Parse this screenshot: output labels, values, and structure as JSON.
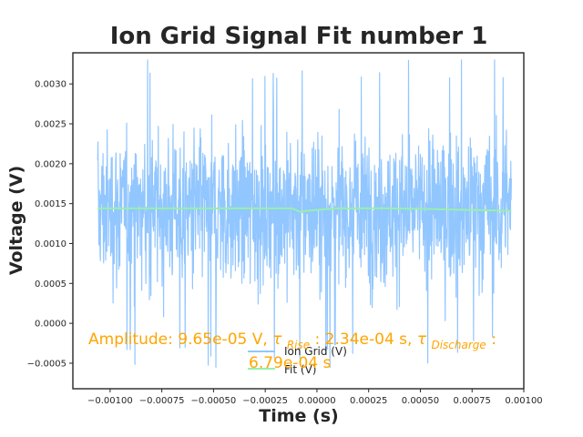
{
  "chart_data": {
    "type": "line",
    "title": "Ion Grid Signal Fit number 1",
    "xlabel": "Time (s)",
    "ylabel": "Voltage (V)",
    "xlim": [
      -0.00118,
      0.001
    ],
    "ylim": [
      -0.00082,
      0.00339
    ],
    "xticks": [
      -0.001,
      -0.00075,
      -0.0005,
      -0.00025,
      0.0,
      0.00025,
      0.0005,
      0.00075,
      0.001
    ],
    "xtick_labels": [
      "−0.00100",
      "−0.00075",
      "−0.00050",
      "−0.00025",
      "0.00000",
      "0.00025",
      "0.00050",
      "0.00075",
      "0.00100"
    ],
    "yticks": [
      -0.0005,
      0.0,
      0.0005,
      0.001,
      0.0015,
      0.002,
      0.0025,
      0.003
    ],
    "ytick_labels": [
      "−0.0005",
      "0.0000",
      "0.0005",
      "0.0010",
      "0.0015",
      "0.0020",
      "0.0025",
      "0.0030"
    ],
    "grid": false,
    "legend_position": "lower-center",
    "series": [
      {
        "name": "Ion Grid (V)",
        "color": "#92c6ff",
        "x_range": [
          -0.00106,
          0.00094
        ],
        "mean": 0.00143,
        "typical_range": [
          -5e-05,
          0.0029
        ],
        "extremes": [
          -0.00063,
          0.0033
        ]
      },
      {
        "name": "Fit (V)",
        "color": "#97f0aa",
        "x": [
          -0.00106,
          -0.00012,
          -8e-05,
          -5e-05,
          0.0001,
          0.0003,
          0.0005,
          0.00075,
          0.00094
        ],
        "y": [
          0.00144,
          0.00144,
          0.001395,
          0.00141,
          0.00144,
          0.001442,
          0.001435,
          0.00142,
          0.00141
        ]
      }
    ],
    "annotation": {
      "prefix": "Amplitude: 9.65e-05 V, ",
      "tau": "τ",
      "rise_sub": "Rise",
      "rise_value": ": 2.34e-04 s, ",
      "discharge_sub": "Discharge",
      "colon": ":",
      "line2": "6.79e-04 s"
    }
  }
}
